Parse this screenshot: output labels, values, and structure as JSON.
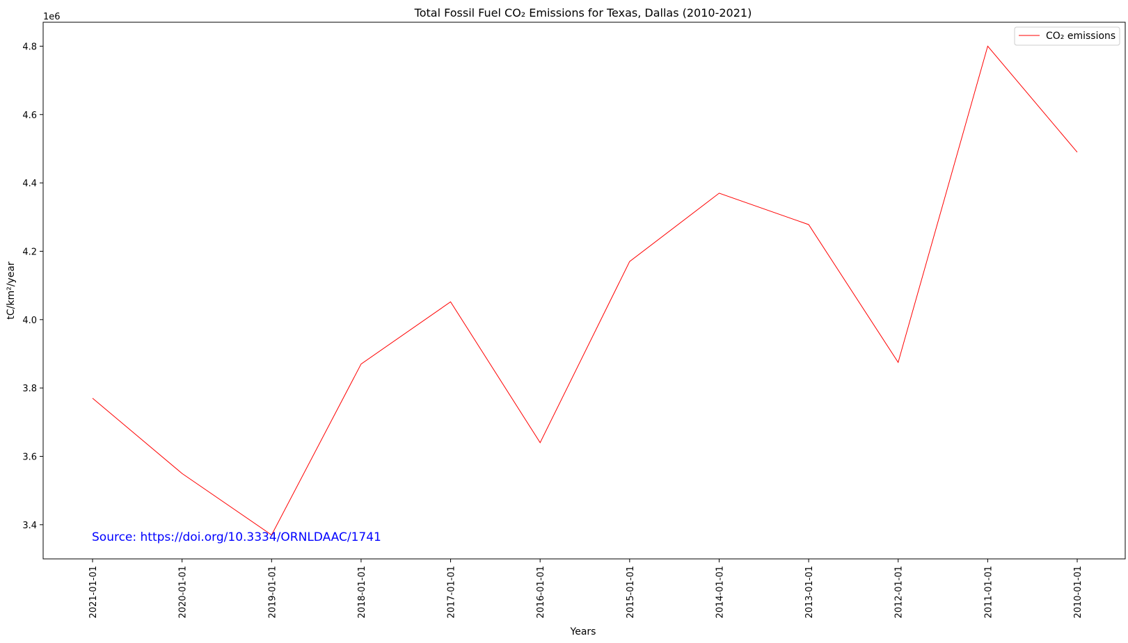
{
  "chart_data": {
    "type": "line",
    "title": "Total Fossil Fuel CO₂ Emissions for Texas, Dallas (2010-2021)",
    "xlabel": "Years",
    "ylabel": "tC/km²/year",
    "y_offset_label": "1e6",
    "y_multiplier": 1000000,
    "ylim": [
      3300000,
      4870000
    ],
    "y_ticks": [
      3400000,
      3600000,
      3800000,
      4000000,
      4200000,
      4400000,
      4600000,
      4800000
    ],
    "y_tick_labels": [
      "3.4",
      "3.6",
      "3.8",
      "4.0",
      "4.2",
      "4.4",
      "4.6",
      "4.8"
    ],
    "x_order": "reversed",
    "x": [
      "2021-01-01",
      "2020-01-01",
      "2019-01-01",
      "2018-01-01",
      "2017-01-01",
      "2016-01-01",
      "2015-01-01",
      "2014-01-01",
      "2013-01-01",
      "2012-01-01",
      "2011-01-01",
      "2010-01-01"
    ],
    "series": [
      {
        "name": "CO₂ emissions",
        "color": "#ff0000",
        "values": [
          3770000,
          3550000,
          3370000,
          3870000,
          4052000,
          3640000,
          4170000,
          4370000,
          4278000,
          3875000,
          4800000,
          4490000
        ]
      }
    ],
    "grid": false,
    "legend_position": "upper right",
    "annotation": {
      "text": "Source: https://doi.org/10.3334/ORNLDAAC/1741",
      "color": "#0000ff",
      "position": "lower left"
    }
  }
}
